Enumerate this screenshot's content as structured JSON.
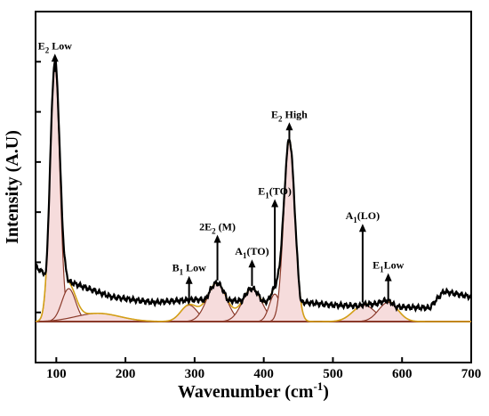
{
  "chart_data": {
    "type": "line",
    "xlabel": "Wavenumber (cm",
    "xlabel_sup": "-1",
    "xlabel_close": ")",
    "ylabel": "Intensity (A.U)",
    "xlim": [
      70,
      700
    ],
    "ylim": [
      0,
      1.13
    ],
    "x_ticks": [
      100,
      200,
      300,
      400,
      500,
      600,
      700
    ],
    "y_tick_count": 7,
    "colors": {
      "measured": "#000000",
      "fit": "#d4a017",
      "components": "#8b3a2a",
      "component_fill": "#f6dcdc",
      "baseline": "#8b3a2a",
      "arrows": "#000000"
    },
    "components": [
      {
        "center": 98,
        "height": 0.93,
        "width": 7
      },
      {
        "center": 118,
        "height": 0.12,
        "width": 10
      },
      {
        "center": 160,
        "height": 0.03,
        "width": 32
      },
      {
        "center": 292,
        "height": 0.06,
        "width": 12
      },
      {
        "center": 332,
        "height": 0.14,
        "width": 14
      },
      {
        "center": 383,
        "height": 0.12,
        "width": 14
      },
      {
        "center": 416,
        "height": 0.1,
        "width": 8
      },
      {
        "center": 437,
        "height": 0.66,
        "width": 8
      },
      {
        "center": 545,
        "height": 0.06,
        "width": 16
      },
      {
        "center": 580,
        "height": 0.07,
        "width": 14
      }
    ],
    "measured_baseline_points": [
      [
        70,
        0.2
      ],
      [
        80,
        0.18
      ],
      [
        180,
        0.09
      ],
      [
        240,
        0.07
      ],
      [
        300,
        0.08
      ],
      [
        460,
        0.07
      ],
      [
        500,
        0.06
      ],
      [
        640,
        0.05
      ],
      [
        660,
        0.11
      ],
      [
        680,
        0.1
      ],
      [
        700,
        0.09
      ]
    ],
    "annotations": [
      {
        "label": "E",
        "sub": "2",
        "suffix": " Low",
        "x": 98,
        "arrow_top": 0.97,
        "arrow_bottom": 0.91
      },
      {
        "label": "B",
        "sub": "1",
        "suffix": " Low",
        "x": 292,
        "arrow_top": 0.16,
        "arrow_bottom": 0.08
      },
      {
        "label": "2E",
        "sub": "2",
        "suffix": " (M)",
        "x": 333,
        "arrow_top": 0.31,
        "arrow_bottom": 0.15
      },
      {
        "label": "A",
        "sub": "1",
        "suffix": "(TO)",
        "x": 383,
        "arrow_top": 0.22,
        "arrow_bottom": 0.13
      },
      {
        "label": "E",
        "sub": "1",
        "suffix": "(TO)",
        "x": 416,
        "arrow_top": 0.44,
        "arrow_bottom": 0.13
      },
      {
        "label": "E",
        "sub": "2",
        "suffix": " High",
        "x": 437,
        "arrow_top": 0.72,
        "arrow_bottom": 0.66
      },
      {
        "label": "A",
        "sub": "1",
        "suffix": "(LO)",
        "x": 543,
        "arrow_top": 0.35,
        "arrow_bottom": 0.07
      },
      {
        "label": "E",
        "sub": "1",
        "suffix": "Low",
        "x": 580,
        "arrow_top": 0.17,
        "arrow_bottom": 0.08
      }
    ]
  }
}
